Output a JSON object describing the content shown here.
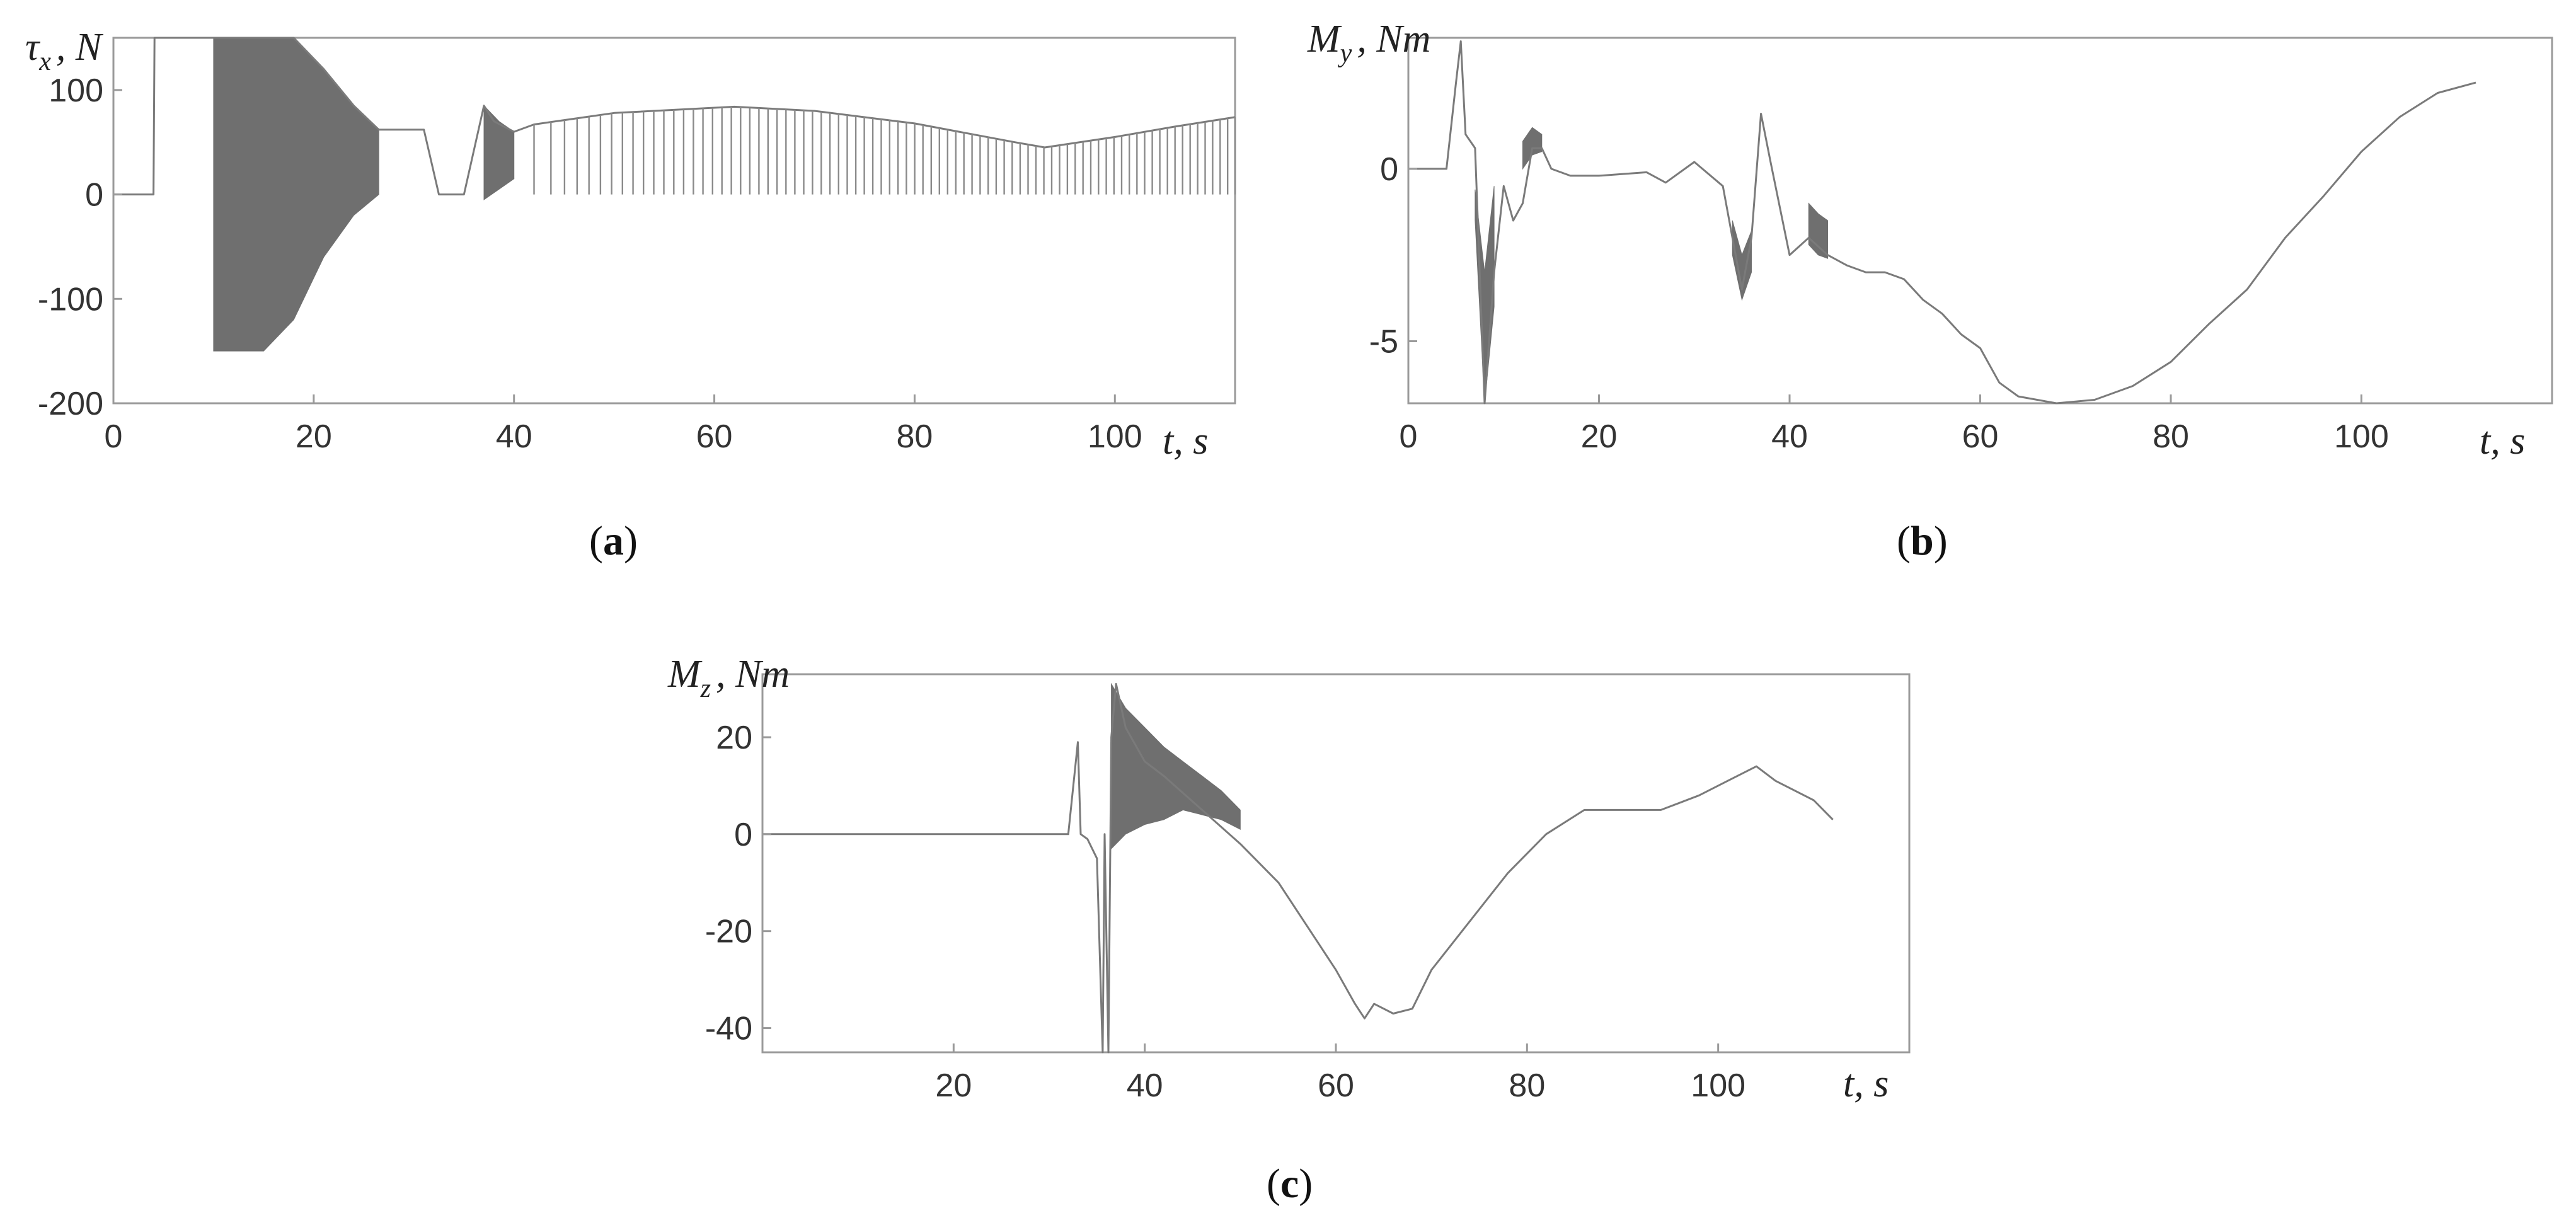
{
  "chart_data": [
    {
      "id": "a",
      "type": "line",
      "panel_label": "a",
      "ylabel": "τ_x , N",
      "ylabel_symbol": "τ",
      "ylabel_sub": "x",
      "ylabel_unit": ", N",
      "xlabel": "t, s",
      "xlim": [
        0,
        112
      ],
      "ylim": [
        -200,
        150
      ],
      "xticks": [
        0,
        20,
        40,
        60,
        80,
        100
      ],
      "yticks": [
        -200,
        -100,
        0,
        100
      ],
      "xtick_labels": [
        "0",
        "20",
        "40",
        "60",
        "80",
        "100"
      ],
      "ytick_labels": [
        "-200",
        "-100",
        "0",
        "100"
      ],
      "grid": false,
      "series": [
        {
          "name": "tau_x",
          "x": [
            0,
            4,
            4.1,
            10,
            10.1,
            11,
            15,
            18,
            21,
            24,
            26.5,
            27,
            29,
            31,
            32.5,
            35,
            37,
            38,
            40,
            42,
            50,
            60,
            62,
            70,
            80,
            90,
            93,
            100,
            106,
            112
          ],
          "y": [
            0,
            0,
            150,
            150,
            150,
            150,
            150,
            150,
            120,
            85,
            62,
            62,
            62,
            62,
            0,
            0,
            85,
            70,
            60,
            67,
            78,
            83,
            84,
            80,
            68,
            50,
            45,
            55,
            65,
            74
          ]
        }
      ],
      "bands": [
        {
          "name": "oscillation band 10-26 s",
          "x": [
            10,
            15,
            18,
            21,
            24,
            26.5
          ],
          "y_upper": [
            150,
            150,
            150,
            120,
            85,
            62
          ],
          "y_lower": [
            -150,
            -150,
            -120,
            -60,
            -20,
            0
          ]
        },
        {
          "name": "oscillation band 37-40 s",
          "x": [
            37,
            38.5,
            40
          ],
          "y_upper": [
            85,
            70,
            60
          ],
          "y_lower": [
            -5,
            5,
            15
          ]
        }
      ],
      "switching": [
        {
          "from": 42,
          "to": 112,
          "lower": 0,
          "envelope": "upper"
        }
      ]
    },
    {
      "id": "b",
      "type": "line",
      "panel_label": "b",
      "ylabel": "M_y , Nm",
      "ylabel_symbol": "M",
      "ylabel_sub": "y",
      "ylabel_unit": ", Nm",
      "xlabel": "t, s",
      "xlim": [
        0,
        120
      ],
      "ylim": [
        -6.8,
        3.8
      ],
      "xticks": [
        0,
        20,
        40,
        60,
        80,
        100
      ],
      "yticks": [
        -5,
        0
      ],
      "xtick_labels": [
        "0",
        "20",
        "40",
        "60",
        "80",
        "100"
      ],
      "ytick_labels": [
        "-5",
        "0"
      ],
      "grid": false,
      "series": [
        {
          "name": "M_y",
          "x": [
            0,
            4,
            5,
            5.5,
            6,
            7,
            8,
            9,
            10,
            11,
            12,
            13,
            14,
            15,
            17,
            20,
            25,
            27,
            30,
            33,
            34,
            35,
            36,
            37,
            38,
            40,
            42,
            44,
            46,
            48,
            50,
            52,
            54,
            56,
            58,
            60,
            62,
            64,
            68,
            72,
            76,
            80,
            84,
            88,
            92,
            96,
            100,
            104,
            108,
            112
          ],
          "y": [
            0,
            0,
            2.5,
            3.7,
            1.0,
            0.6,
            -6.8,
            -3.0,
            -0.5,
            -1.5,
            -1.0,
            0.6,
            0.6,
            0,
            -0.2,
            -0.2,
            -0.1,
            -0.4,
            0.2,
            -0.5,
            -2.0,
            -3.5,
            -2.0,
            1.6,
            0.2,
            -2.5,
            -2.0,
            -2.5,
            -2.8,
            -3.0,
            -3.0,
            -3.2,
            -3.8,
            -4.2,
            -4.8,
            -5.2,
            -6.2,
            -6.6,
            -6.8,
            -6.7,
            -6.3,
            -5.6,
            -4.5,
            -3.5,
            -2.0,
            -0.8,
            0.5,
            1.5,
            2.2,
            2.5
          ]
        }
      ],
      "bands": [
        {
          "name": "band 7-9 s",
          "x": [
            7,
            8,
            9
          ],
          "y_upper": [
            -0.6,
            -3.0,
            -0.5
          ],
          "y_lower": [
            -1.5,
            -6.8,
            -4.0
          ]
        },
        {
          "name": "band 12-14 s",
          "x": [
            12,
            13,
            14
          ],
          "y_upper": [
            0.8,
            1.2,
            1.0
          ],
          "y_lower": [
            0,
            0.4,
            0.5
          ]
        },
        {
          "name": "band 34-36 s",
          "x": [
            34,
            35,
            36
          ],
          "y_upper": [
            -1.5,
            -2.5,
            -1.8
          ],
          "y_lower": [
            -2.5,
            -3.8,
            -3.0
          ]
        },
        {
          "name": "band 42-44 s",
          "x": [
            42,
            43,
            44
          ],
          "y_upper": [
            -1.0,
            -1.3,
            -1.5
          ],
          "y_lower": [
            -2.2,
            -2.5,
            -2.6
          ]
        }
      ]
    },
    {
      "id": "c",
      "type": "line",
      "panel_label": "c",
      "ylabel": "M_z , Nm",
      "ylabel_symbol": "M",
      "ylabel_sub": "z",
      "ylabel_unit": ", Nm",
      "xlabel": "t, s",
      "xlim": [
        0,
        120
      ],
      "ylim": [
        -45,
        33
      ],
      "xticks": [
        20,
        40,
        60,
        80,
        100
      ],
      "yticks": [
        -40,
        -20,
        0,
        20
      ],
      "xtick_labels": [
        "20",
        "40",
        "60",
        "80",
        "100"
      ],
      "ytick_labels": [
        "-40",
        "-20",
        "0",
        "20"
      ],
      "grid": false,
      "series": [
        {
          "name": "M_z",
          "x": [
            0,
            32,
            33,
            33.3,
            34,
            35,
            35.6,
            35.8,
            36.2,
            36.5,
            37,
            38,
            40,
            42,
            46,
            50,
            54,
            58,
            60,
            62,
            63,
            64,
            66,
            68,
            70,
            74,
            78,
            82,
            86,
            90,
            94,
            98,
            101,
            104,
            106,
            110,
            112
          ],
          "y": [
            0,
            0,
            19,
            0,
            -1,
            -5,
            -45,
            0,
            -45,
            20,
            31,
            22,
            15,
            12,
            5,
            -2,
            -10,
            -22,
            -28,
            -35,
            -38,
            -35,
            -37,
            -36,
            -28,
            -18,
            -8,
            0,
            5,
            5,
            5,
            8,
            11,
            14,
            11,
            7,
            3
          ]
        }
      ],
      "bands": [
        {
          "name": "band 36-50 s",
          "x": [
            36.5,
            38,
            40,
            42,
            44,
            46,
            48,
            50
          ],
          "y_upper": [
            31,
            26,
            22,
            18,
            15,
            12,
            9,
            5
          ],
          "y_lower": [
            -3,
            0,
            2,
            3,
            5,
            4,
            3,
            1
          ]
        }
      ]
    }
  ]
}
